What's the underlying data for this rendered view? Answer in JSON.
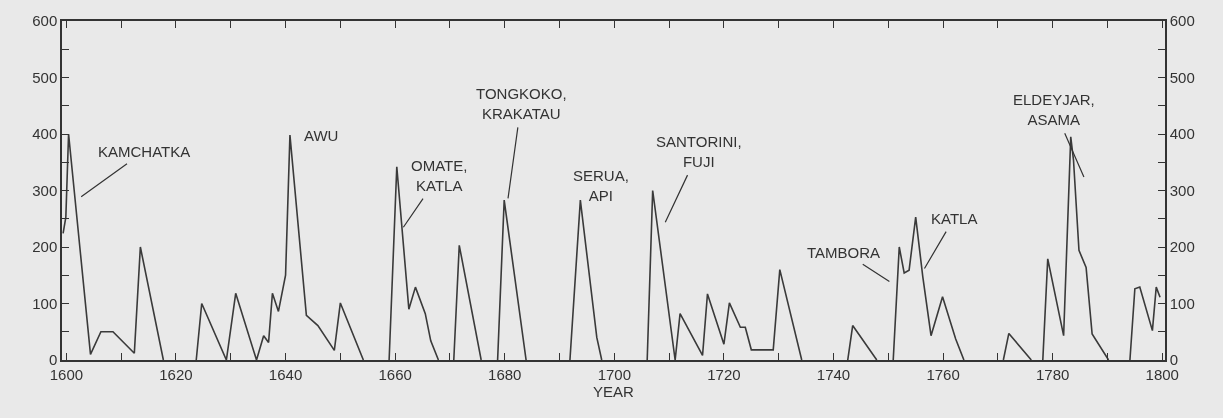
{
  "chart_data": {
    "type": "line",
    "xlabel": "YEAR",
    "x": [
      1599.4,
      1599.9,
      1600.4,
      1604.4,
      1606.3,
      1608.5,
      1612.4,
      1613.5,
      1617.7,
      1620.7,
      1623.7,
      1624.7,
      1629.2,
      1630.9,
      1634.7,
      1636,
      1636.9,
      1637.6,
      1638.7,
      1640,
      1640.8,
      1643.8,
      1645.9,
      1648.9,
      1650,
      1654.2,
      1656.5,
      1658.9,
      1660.3,
      1662.5,
      1663.7,
      1665.5,
      1666.5,
      1667.9,
      1669.3,
      1670.7,
      1671.7,
      1675.7,
      1677.2,
      1678.7,
      1679.9,
      1683.9,
      1687.9,
      1691.9,
      1693.8,
      1696.8,
      1697.7,
      1701.9,
      1706,
      1707,
      1711.1,
      1712,
      1716.1,
      1717,
      1720,
      1721,
      1723,
      1723.9,
      1725,
      1729,
      1730.2,
      1734.2,
      1738.4,
      1742.6,
      1743.5,
      1747.9,
      1749.4,
      1750.9,
      1752,
      1752.9,
      1753.8,
      1755,
      1756.3,
      1757.8,
      1759.9,
      1762.3,
      1763.8,
      1767.4,
      1771,
      1772,
      1776.1,
      1777.2,
      1778.2,
      1779.1,
      1782,
      1783.3,
      1783.8,
      1784.8,
      1786.1,
      1787.2,
      1790.2,
      1792.2,
      1794.1,
      1795,
      1795.9,
      1798.2,
      1798.9,
      1799.6
    ],
    "series": [
      {
        "color": "#3a3a3a",
        "values": [
          224,
          253,
          400,
          10,
          50,
          50,
          12,
          200,
          0,
          null,
          0,
          100,
          0,
          118,
          0,
          43,
          31,
          118,
          86,
          150,
          398,
          79,
          61,
          17,
          101,
          0,
          null,
          0,
          342,
          90,
          129,
          82,
          34,
          0,
          null,
          0,
          203,
          0,
          null,
          0,
          283,
          0,
          null,
          0,
          283,
          40,
          0,
          null,
          0,
          300,
          0,
          82,
          8,
          117,
          28,
          101,
          58,
          58,
          18,
          18,
          160,
          0,
          null,
          0,
          61,
          0,
          null,
          0,
          200,
          154,
          159,
          253,
          147,
          43,
          112,
          37,
          0,
          null,
          0,
          47,
          0,
          null,
          0,
          179,
          43,
          395,
          354,
          194,
          164,
          46,
          0,
          null,
          0,
          126,
          129,
          52,
          129,
          111
        ]
      }
    ],
    "xlim": [
      1599.2,
      1800.5
    ],
    "xticks": [
      1600,
      {
        "value": 1610,
        "label": null
      },
      1620,
      {
        "value": 1630,
        "label": null
      },
      1640,
      {
        "value": 1650,
        "label": null
      },
      1660,
      {
        "value": 1670,
        "label": null
      },
      1680,
      {
        "value": 1690,
        "label": null
      },
      1700,
      {
        "value": 1710,
        "label": null
      },
      1720,
      {
        "value": 1730,
        "label": null
      },
      1740,
      {
        "value": 1750,
        "label": null
      },
      1760,
      {
        "value": 1770,
        "label": null
      },
      1780,
      {
        "value": 1790,
        "label": null
      },
      1800
    ],
    "ylim": [
      0,
      600
    ],
    "yticks": [
      0,
      {
        "value": 50,
        "label": null
      },
      100,
      {
        "value": 150,
        "label": null
      },
      200,
      {
        "value": 250,
        "label": null
      },
      300,
      {
        "value": 350,
        "label": null
      },
      400,
      {
        "value": 450,
        "label": null
      },
      500,
      {
        "value": 550,
        "label": null
      },
      600
    ],
    "y2lim": [
      0,
      600
    ],
    "y2ticks": [
      0,
      {
        "value": 50,
        "label": null
      },
      100,
      {
        "value": 150,
        "label": null
      },
      200,
      {
        "value": 250,
        "label": null
      },
      300,
      {
        "value": 350,
        "label": null
      },
      400,
      {
        "value": 450,
        "label": null
      },
      500,
      {
        "value": 550,
        "label": null
      },
      600
    ],
    "annotations": [
      "KAMCHATKA",
      "AWU",
      {
        "text": "OMATE,\nKATLA",
        "x": 1661.5,
        "y": 235
      },
      {
        "text": "TONGKOKO,\nKRAKATAU",
        "x": 1680.6,
        "y": 286
      },
      "SERUA,\nAPI",
      "SANTORINI,\nFUJI",
      "TAMBORA",
      {
        "text": "KATLA",
        "x": 1756.6,
        "y": 162
      },
      "ELDEYJAR,\nASAMA"
    ],
    "grid": false,
    "legend": false,
    "marker": "none",
    "line_style": "solid"
  }
}
